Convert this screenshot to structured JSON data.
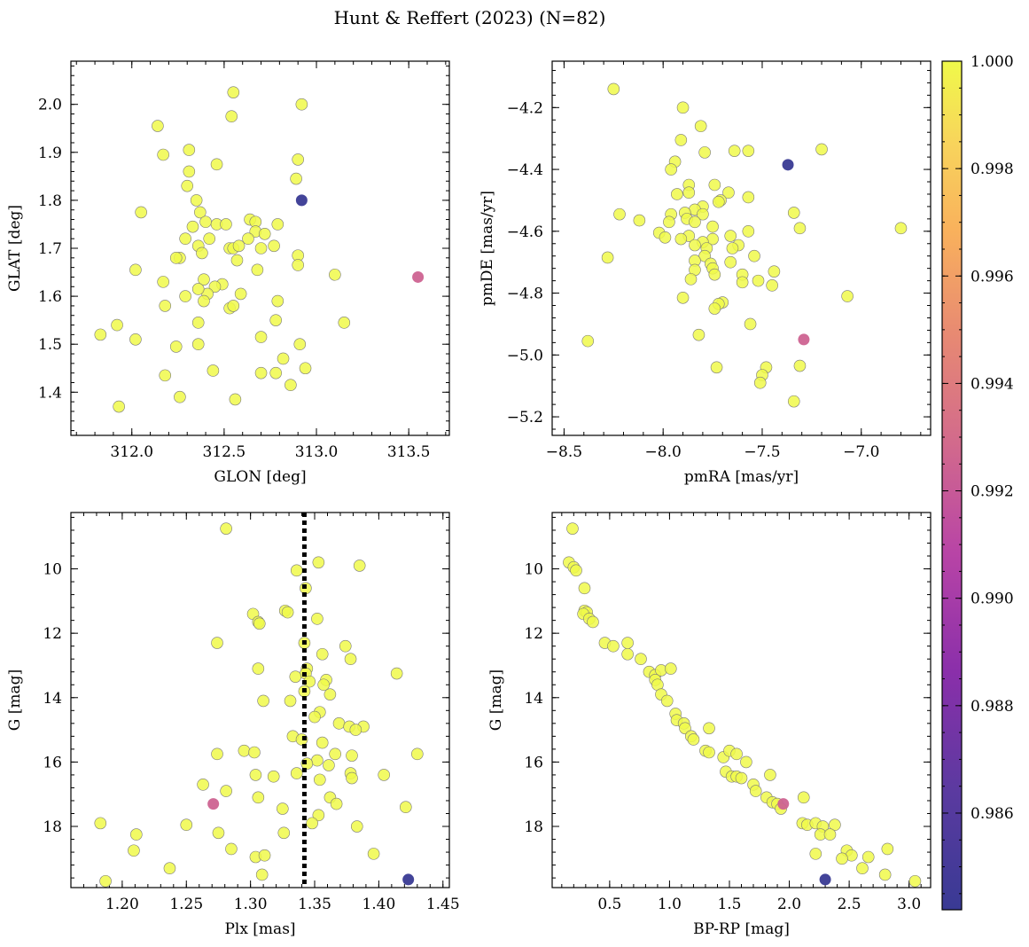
{
  "figure": {
    "title": "Hunt & Reffert (2023) (N=82)"
  },
  "colorbar": {
    "vmin": 0.9842,
    "vmax": 1.0,
    "ticks": [
      0.986,
      0.988,
      0.99,
      0.992,
      0.994,
      0.996,
      0.998,
      1.0
    ],
    "tick_labels": [
      "0.986",
      "0.988",
      "0.990",
      "0.992",
      "0.994",
      "0.996",
      "0.998",
      "1.000"
    ],
    "colormap": "plasma"
  },
  "chart_data": [
    {
      "type": "scatter",
      "id": "sky",
      "xlabel": "GLON [deg]",
      "ylabel": "GLAT [deg]",
      "xlim": [
        311.67,
        313.72
      ],
      "ylim": [
        1.31,
        2.09
      ],
      "yinvert": false,
      "xticks": [
        312.0,
        312.5,
        313.0,
        313.5
      ],
      "xtick_labels": [
        "312.0",
        "312.5",
        "313.0",
        "313.5"
      ],
      "yticks": [
        1.4,
        1.5,
        1.6,
        1.7,
        1.8,
        1.9,
        2.0
      ],
      "ytick_labels": [
        "1.4",
        "1.5",
        "1.6",
        "1.7",
        "1.8",
        "1.9",
        "2.0"
      ],
      "special_points": [
        {
          "x": 312.92,
          "y": 1.8,
          "c": 0.9842
        },
        {
          "x": 313.55,
          "y": 1.64,
          "c": 0.9925
        }
      ],
      "points": [
        [
          312.55,
          2.025
        ],
        [
          312.92,
          2.0
        ],
        [
          312.54,
          1.975
        ],
        [
          312.14,
          1.955
        ],
        [
          312.31,
          1.905
        ],
        [
          312.17,
          1.895
        ],
        [
          312.9,
          1.885
        ],
        [
          312.46,
          1.875
        ],
        [
          312.31,
          1.86
        ],
        [
          312.89,
          1.845
        ],
        [
          312.3,
          1.83
        ],
        [
          312.35,
          1.8
        ],
        [
          312.05,
          1.775
        ],
        [
          312.37,
          1.775
        ],
        [
          312.4,
          1.755
        ],
        [
          312.46,
          1.75
        ],
        [
          312.51,
          1.75
        ],
        [
          312.64,
          1.76
        ],
        [
          312.67,
          1.755
        ],
        [
          312.79,
          1.75
        ],
        [
          312.33,
          1.745
        ],
        [
          312.29,
          1.72
        ],
        [
          312.67,
          1.735
        ],
        [
          312.72,
          1.73
        ],
        [
          312.63,
          1.72
        ],
        [
          312.42,
          1.72
        ],
        [
          312.36,
          1.705
        ],
        [
          312.53,
          1.7
        ],
        [
          312.55,
          1.7
        ],
        [
          312.58,
          1.705
        ],
        [
          312.77,
          1.705
        ],
        [
          312.7,
          1.7
        ],
        [
          312.38,
          1.69
        ],
        [
          312.9,
          1.685
        ],
        [
          312.26,
          1.68
        ],
        [
          312.24,
          1.68
        ],
        [
          312.57,
          1.675
        ],
        [
          312.68,
          1.655
        ],
        [
          312.9,
          1.665
        ],
        [
          312.02,
          1.655
        ],
        [
          313.1,
          1.645
        ],
        [
          312.39,
          1.635
        ],
        [
          312.49,
          1.625
        ],
        [
          312.17,
          1.63
        ],
        [
          312.45,
          1.62
        ],
        [
          312.41,
          1.605
        ],
        [
          312.59,
          1.605
        ],
        [
          312.36,
          1.615
        ],
        [
          312.29,
          1.6
        ],
        [
          312.79,
          1.59
        ],
        [
          312.39,
          1.59
        ],
        [
          312.53,
          1.575
        ],
        [
          312.55,
          1.58
        ],
        [
          312.18,
          1.58
        ],
        [
          312.36,
          1.545
        ],
        [
          312.78,
          1.55
        ],
        [
          313.15,
          1.545
        ],
        [
          311.92,
          1.54
        ],
        [
          311.83,
          1.52
        ],
        [
          312.02,
          1.51
        ],
        [
          312.7,
          1.515
        ],
        [
          312.36,
          1.5
        ],
        [
          312.24,
          1.495
        ],
        [
          312.91,
          1.5
        ],
        [
          312.82,
          1.47
        ],
        [
          312.94,
          1.45
        ],
        [
          312.44,
          1.445
        ],
        [
          312.7,
          1.44
        ],
        [
          312.78,
          1.44
        ],
        [
          312.18,
          1.435
        ],
        [
          312.86,
          1.415
        ],
        [
          312.26,
          1.39
        ],
        [
          312.56,
          1.385
        ],
        [
          311.93,
          1.37
        ]
      ]
    },
    {
      "type": "scatter",
      "id": "pm",
      "xlabel": "pmRA [mas/yr]",
      "ylabel": "pmDE [mas/yr]",
      "xlim": [
        -8.56,
        -6.65
      ],
      "ylim": [
        -5.26,
        -4.05
      ],
      "yinvert": false,
      "xticks": [
        -8.5,
        -8.0,
        -7.5,
        -7.0
      ],
      "xtick_labels": [
        "−8.5",
        "−8.0",
        "−7.5",
        "−7.0"
      ],
      "yticks": [
        -5.2,
        -5.0,
        -4.8,
        -4.6,
        -4.4,
        -4.2
      ],
      "ytick_labels": [
        "−5.2",
        "−5.0",
        "−4.8",
        "−4.6",
        "−4.4",
        "−4.2"
      ],
      "special_points": [
        {
          "x": -7.37,
          "y": -4.385,
          "c": 0.9842
        },
        {
          "x": -7.29,
          "y": -4.95,
          "c": 0.9925
        }
      ],
      "points": [
        [
          -8.25,
          -4.14
        ],
        [
          -7.9,
          -4.2
        ],
        [
          -7.81,
          -4.26
        ],
        [
          -7.91,
          -4.305
        ],
        [
          -7.64,
          -4.34
        ],
        [
          -7.57,
          -4.34
        ],
        [
          -7.2,
          -4.335
        ],
        [
          -7.79,
          -4.345
        ],
        [
          -7.94,
          -4.375
        ],
        [
          -7.96,
          -4.4
        ],
        [
          -7.74,
          -4.45
        ],
        [
          -7.87,
          -4.45
        ],
        [
          -7.67,
          -4.475
        ],
        [
          -7.87,
          -4.475
        ],
        [
          -7.93,
          -4.48
        ],
        [
          -7.57,
          -4.49
        ],
        [
          -7.71,
          -4.5
        ],
        [
          -7.72,
          -4.505
        ],
        [
          -7.8,
          -4.52
        ],
        [
          -7.84,
          -4.53
        ],
        [
          -7.89,
          -4.54
        ],
        [
          -7.96,
          -4.545
        ],
        [
          -8.22,
          -4.545
        ],
        [
          -7.8,
          -4.545
        ],
        [
          -7.34,
          -4.54
        ],
        [
          -7.88,
          -4.56
        ],
        [
          -7.97,
          -4.57
        ],
        [
          -8.12,
          -4.565
        ],
        [
          -7.84,
          -4.57
        ],
        [
          -7.75,
          -4.585
        ],
        [
          -7.31,
          -4.59
        ],
        [
          -6.8,
          -4.59
        ],
        [
          -8.02,
          -4.605
        ],
        [
          -7.57,
          -4.6
        ],
        [
          -7.87,
          -4.615
        ],
        [
          -7.99,
          -4.62
        ],
        [
          -7.66,
          -4.615
        ],
        [
          -7.91,
          -4.625
        ],
        [
          -7.75,
          -4.625
        ],
        [
          -7.8,
          -4.635
        ],
        [
          -7.84,
          -4.645
        ],
        [
          -7.62,
          -4.645
        ],
        [
          -7.78,
          -4.655
        ],
        [
          -7.65,
          -4.655
        ],
        [
          -8.28,
          -4.685
        ],
        [
          -7.79,
          -4.68
        ],
        [
          -7.54,
          -4.68
        ],
        [
          -7.84,
          -4.695
        ],
        [
          -7.66,
          -4.7
        ],
        [
          -7.76,
          -4.705
        ],
        [
          -7.75,
          -4.72
        ],
        [
          -7.84,
          -4.725
        ],
        [
          -7.44,
          -4.73
        ],
        [
          -7.6,
          -4.74
        ],
        [
          -7.74,
          -4.74
        ],
        [
          -7.6,
          -4.765
        ],
        [
          -7.86,
          -4.755
        ],
        [
          -7.52,
          -4.76
        ],
        [
          -7.45,
          -4.775
        ],
        [
          -7.07,
          -4.81
        ],
        [
          -7.9,
          -4.815
        ],
        [
          -7.7,
          -4.83
        ],
        [
          -7.72,
          -4.835
        ],
        [
          -7.74,
          -4.85
        ],
        [
          -7.56,
          -4.9
        ],
        [
          -7.82,
          -4.935
        ],
        [
          -8.38,
          -4.955
        ],
        [
          -7.73,
          -5.04
        ],
        [
          -7.48,
          -5.04
        ],
        [
          -7.31,
          -5.035
        ],
        [
          -7.5,
          -5.065
        ],
        [
          -7.51,
          -5.09
        ],
        [
          -7.34,
          -5.15
        ]
      ]
    },
    {
      "type": "scatter",
      "id": "plx",
      "xlabel": "Plx [mas]",
      "ylabel": "G [mag]",
      "xlim": [
        1.16,
        1.455
      ],
      "ylim": [
        8.25,
        19.9
      ],
      "yinvert": true,
      "vline": 1.342,
      "xticks": [
        1.2,
        1.25,
        1.3,
        1.35,
        1.4,
        1.45
      ],
      "xtick_labels": [
        "1.20",
        "1.25",
        "1.30",
        "1.35",
        "1.40",
        "1.45"
      ],
      "yticks": [
        10,
        12,
        14,
        16,
        18
      ],
      "ytick_labels": [
        "10",
        "12",
        "14",
        "16",
        "18"
      ],
      "special_points": [
        {
          "x": 1.423,
          "y": 19.65,
          "c": 0.9842
        },
        {
          "x": 1.271,
          "y": 17.3,
          "c": 0.9925
        }
      ],
      "points": [
        [
          1.281,
          8.75
        ],
        [
          1.353,
          9.8
        ],
        [
          1.385,
          9.9
        ],
        [
          1.336,
          10.05
        ],
        [
          1.343,
          10.6
        ],
        [
          1.327,
          11.3
        ],
        [
          1.329,
          11.35
        ],
        [
          1.302,
          11.4
        ],
        [
          1.306,
          11.65
        ],
        [
          1.352,
          11.55
        ],
        [
          1.307,
          11.7
        ],
        [
          1.274,
          12.3
        ],
        [
          1.342,
          12.3
        ],
        [
          1.374,
          12.4
        ],
        [
          1.356,
          12.65
        ],
        [
          1.378,
          12.8
        ],
        [
          1.344,
          13.1
        ],
        [
          1.306,
          13.1
        ],
        [
          1.343,
          13.25
        ],
        [
          1.414,
          13.25
        ],
        [
          1.335,
          13.35
        ],
        [
          1.359,
          13.45
        ],
        [
          1.357,
          13.6
        ],
        [
          1.346,
          13.5
        ],
        [
          1.342,
          13.8
        ],
        [
          1.362,
          13.9
        ],
        [
          1.31,
          14.1
        ],
        [
          1.331,
          14.1
        ],
        [
          1.354,
          14.45
        ],
        [
          1.35,
          14.6
        ],
        [
          1.369,
          14.8
        ],
        [
          1.377,
          14.9
        ],
        [
          1.388,
          14.9
        ],
        [
          1.382,
          15.0
        ],
        [
          1.333,
          15.2
        ],
        [
          1.34,
          15.3
        ],
        [
          1.356,
          15.4
        ],
        [
          1.295,
          15.65
        ],
        [
          1.303,
          15.7
        ],
        [
          1.274,
          15.75
        ],
        [
          1.366,
          15.75
        ],
        [
          1.379,
          15.8
        ],
        [
          1.43,
          15.75
        ],
        [
          1.352,
          15.95
        ],
        [
          1.344,
          16.05
        ],
        [
          1.361,
          16.1
        ],
        [
          1.304,
          16.4
        ],
        [
          1.318,
          16.45
        ],
        [
          1.336,
          16.35
        ],
        [
          1.378,
          16.35
        ],
        [
          1.404,
          16.4
        ],
        [
          1.379,
          16.5
        ],
        [
          1.354,
          16.55
        ],
        [
          1.263,
          16.7
        ],
        [
          1.281,
          16.9
        ],
        [
          1.362,
          17.1
        ],
        [
          1.306,
          17.1
        ],
        [
          1.367,
          17.3
        ],
        [
          1.325,
          17.45
        ],
        [
          1.421,
          17.4
        ],
        [
          1.353,
          17.65
        ],
        [
          1.348,
          17.9
        ],
        [
          1.183,
          17.9
        ],
        [
          1.25,
          17.95
        ],
        [
          1.383,
          18.0
        ],
        [
          1.211,
          18.25
        ],
        [
          1.275,
          18.2
        ],
        [
          1.326,
          18.2
        ],
        [
          1.285,
          18.7
        ],
        [
          1.209,
          18.75
        ],
        [
          1.396,
          18.85
        ],
        [
          1.304,
          18.95
        ],
        [
          1.311,
          18.9
        ],
        [
          1.237,
          19.3
        ],
        [
          1.309,
          19.5
        ],
        [
          1.187,
          19.7
        ]
      ]
    },
    {
      "type": "scatter",
      "id": "cmd",
      "xlabel": "BP-RP [mag]",
      "ylabel": "G [mag]",
      "xlim": [
        0.02,
        3.18
      ],
      "ylim": [
        8.25,
        19.9
      ],
      "yinvert": true,
      "xticks": [
        0.5,
        1.0,
        1.5,
        2.0,
        2.5,
        3.0
      ],
      "xtick_labels": [
        "0.5",
        "1.0",
        "1.5",
        "2.0",
        "2.5",
        "3.0"
      ],
      "yticks": [
        10,
        12,
        14,
        16,
        18
      ],
      "ytick_labels": [
        "10",
        "12",
        "14",
        "16",
        "18"
      ],
      "special_points": [
        {
          "x": 2.3,
          "y": 19.65,
          "c": 0.9842
        },
        {
          "x": 1.95,
          "y": 17.3,
          "c": 0.9925
        }
      ],
      "points": [
        [
          0.19,
          8.75
        ],
        [
          0.16,
          9.8
        ],
        [
          0.2,
          9.95
        ],
        [
          0.22,
          10.05
        ],
        [
          0.29,
          10.6
        ],
        [
          0.29,
          11.3
        ],
        [
          0.31,
          11.35
        ],
        [
          0.28,
          11.4
        ],
        [
          0.33,
          11.55
        ],
        [
          0.36,
          11.65
        ],
        [
          0.46,
          12.3
        ],
        [
          0.53,
          12.4
        ],
        [
          0.65,
          12.3
        ],
        [
          0.65,
          12.65
        ],
        [
          0.76,
          12.8
        ],
        [
          0.83,
          13.2
        ],
        [
          0.88,
          13.3
        ],
        [
          0.93,
          13.15
        ],
        [
          1.01,
          13.1
        ],
        [
          0.88,
          13.45
        ],
        [
          0.9,
          13.6
        ],
        [
          0.93,
          13.9
        ],
        [
          0.98,
          14.1
        ],
        [
          1.05,
          14.5
        ],
        [
          1.06,
          14.7
        ],
        [
          1.12,
          14.8
        ],
        [
          1.13,
          14.95
        ],
        [
          1.18,
          15.2
        ],
        [
          1.2,
          15.3
        ],
        [
          1.33,
          14.95
        ],
        [
          1.3,
          15.65
        ],
        [
          1.33,
          15.7
        ],
        [
          1.45,
          15.85
        ],
        [
          1.5,
          15.65
        ],
        [
          1.56,
          15.75
        ],
        [
          1.64,
          16.0
        ],
        [
          1.47,
          16.3
        ],
        [
          1.52,
          16.45
        ],
        [
          1.56,
          16.45
        ],
        [
          1.6,
          16.5
        ],
        [
          1.84,
          16.4
        ],
        [
          1.7,
          16.7
        ],
        [
          1.72,
          16.9
        ],
        [
          1.81,
          17.1
        ],
        [
          1.86,
          17.25
        ],
        [
          1.9,
          17.3
        ],
        [
          1.93,
          17.45
        ],
        [
          2.12,
          17.1
        ],
        [
          2.11,
          17.9
        ],
        [
          2.15,
          17.95
        ],
        [
          2.22,
          17.9
        ],
        [
          2.28,
          18.0
        ],
        [
          2.38,
          17.95
        ],
        [
          2.26,
          18.25
        ],
        [
          2.34,
          18.25
        ],
        [
          2.22,
          18.85
        ],
        [
          2.48,
          18.75
        ],
        [
          2.52,
          18.9
        ],
        [
          2.44,
          19.0
        ],
        [
          2.66,
          18.95
        ],
        [
          2.82,
          18.7
        ],
        [
          2.61,
          19.3
        ],
        [
          2.8,
          19.5
        ],
        [
          3.05,
          19.7
        ]
      ]
    }
  ]
}
